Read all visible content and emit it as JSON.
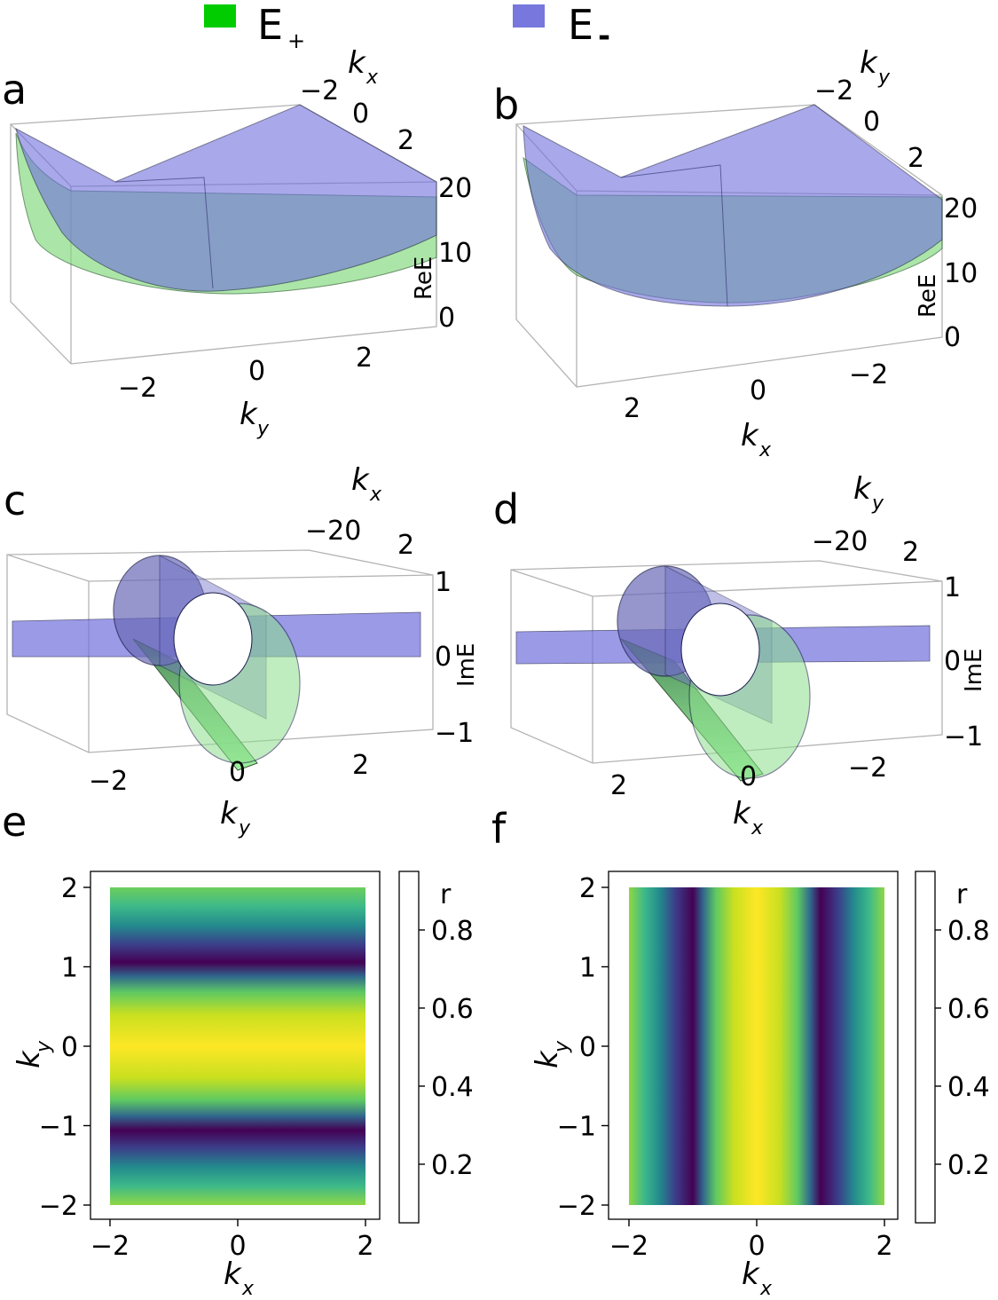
{
  "legend": [
    {
      "label": "E",
      "sub": "+",
      "color": "#00cc00"
    },
    {
      "label": "E",
      "sub": "-",
      "color": "#7777dd"
    }
  ],
  "colors": {
    "E_plus_surface": "#63e063",
    "E_minus_surface": "#6f6fd9",
    "edge": "#1a1a4a",
    "viridis": [
      "#440154",
      "#3b528b",
      "#21918c",
      "#5ec962",
      "#fde725"
    ]
  },
  "panels": {
    "a": {
      "label": "a",
      "x_axis": "k",
      "x_sub": "y",
      "depth_axis": "k",
      "depth_sub": "x",
      "z_axis": "ReE",
      "x_ticks": [
        "−2",
        "0",
        "2"
      ],
      "depth_ticks": [
        "−2",
        "0",
        "2"
      ],
      "z_ticks": [
        "20",
        "10",
        "0"
      ]
    },
    "b": {
      "label": "b",
      "x_axis": "k",
      "x_sub": "x",
      "depth_axis": "k",
      "depth_sub": "y",
      "z_axis": "ReE",
      "x_ticks": [
        "2",
        "0",
        "−2"
      ],
      "depth_ticks": [
        "−2",
        "0",
        "2"
      ],
      "z_ticks": [
        "20",
        "10",
        "0"
      ]
    },
    "c": {
      "label": "c",
      "x_axis": "k",
      "x_sub": "y",
      "depth_axis": "k",
      "depth_sub": "x",
      "z_axis": "ImE",
      "x_ticks": [
        "−2",
        "0",
        "2"
      ],
      "depth_ticks": [
        "−20",
        "2"
      ],
      "z_ticks": [
        "1",
        "0",
        "−1"
      ]
    },
    "d": {
      "label": "d",
      "x_axis": "k",
      "x_sub": "x",
      "depth_axis": "k",
      "depth_sub": "y",
      "z_axis": "ImE",
      "x_ticks": [
        "2",
        "0",
        "−2"
      ],
      "depth_ticks": [
        "−20",
        "2"
      ],
      "z_ticks": [
        "1",
        "0",
        "−1"
      ]
    },
    "e": {
      "label": "e",
      "xlabel": "k",
      "xlabel_sub": "x",
      "ylabel": "k",
      "ylabel_sub": "y",
      "cbar_label": "r"
    },
    "f": {
      "label": "f",
      "xlabel": "k",
      "xlabel_sub": "x",
      "ylabel": "k",
      "ylabel_sub": "y",
      "cbar_label": "r"
    }
  },
  "chart_data": [
    {
      "panel": "a",
      "type": "area",
      "description_free": true,
      "x_label": "k_y",
      "depth_label": "k_x",
      "z_label": "ReE",
      "zlim": [
        0,
        20
      ],
      "series": [
        {
          "name": "E+"
        },
        {
          "name": "E-"
        }
      ]
    },
    {
      "panel": "b",
      "type": "area",
      "x_label": "k_x",
      "depth_label": "k_y",
      "z_label": "ReE",
      "zlim": [
        0,
        20
      ],
      "series": [
        {
          "name": "E+"
        },
        {
          "name": "E-"
        }
      ]
    },
    {
      "panel": "c",
      "type": "area",
      "x_label": "k_y",
      "depth_label": "k_x",
      "z_label": "ImE",
      "zlim": [
        -1,
        1
      ],
      "series": [
        {
          "name": "E+"
        },
        {
          "name": "E-"
        }
      ]
    },
    {
      "panel": "d",
      "type": "area",
      "x_label": "k_x",
      "depth_label": "k_y",
      "z_label": "ImE",
      "zlim": [
        -1,
        1
      ],
      "series": [
        {
          "name": "E+"
        },
        {
          "name": "E-"
        }
      ]
    },
    {
      "panel": "e",
      "type": "heatmap",
      "xlabel": "k_x",
      "ylabel": "k_y",
      "xlim": [
        -2,
        2
      ],
      "ylim": [
        -2,
        2
      ],
      "x_ticks": [
        -2,
        0,
        2
      ],
      "y_ticks": [
        2,
        1,
        0,
        -1,
        -2
      ],
      "varies_along": "y",
      "minima_at": [
        -1,
        1
      ],
      "max_at": [
        0
      ],
      "profile": [
        [
          -2,
          0.85
        ],
        [
          -1.5,
          0.6
        ],
        [
          -1,
          0.05
        ],
        [
          -0.5,
          0.8
        ],
        [
          0,
          0.95
        ],
        [
          0.5,
          0.8
        ],
        [
          1,
          0.05
        ],
        [
          1.5,
          0.6
        ],
        [
          2,
          0.85
        ]
      ],
      "colorbar": {
        "label": "r",
        "ticks": [
          0.2,
          0.4,
          0.6,
          0.8
        ],
        "range": [
          0.05,
          0.95
        ]
      }
    },
    {
      "panel": "f",
      "type": "heatmap",
      "xlabel": "k_x",
      "ylabel": "k_y",
      "xlim": [
        -2,
        2
      ],
      "ylim": [
        -2,
        2
      ],
      "x_ticks": [
        -2,
        0,
        2
      ],
      "y_ticks": [
        2,
        1,
        0,
        -1,
        -2
      ],
      "varies_along": "x",
      "minima_at": [
        -1,
        1
      ],
      "max_at": [
        0
      ],
      "profile": [
        [
          -2,
          0.85
        ],
        [
          -1.5,
          0.6
        ],
        [
          -1,
          0.05
        ],
        [
          -0.5,
          0.8
        ],
        [
          0,
          0.95
        ],
        [
          0.5,
          0.8
        ],
        [
          1,
          0.05
        ],
        [
          1.5,
          0.6
        ],
        [
          2,
          0.85
        ]
      ],
      "colorbar": {
        "label": "r",
        "ticks": [
          0.2,
          0.4,
          0.6,
          0.8
        ],
        "range": [
          0.05,
          0.95
        ]
      }
    }
  ]
}
